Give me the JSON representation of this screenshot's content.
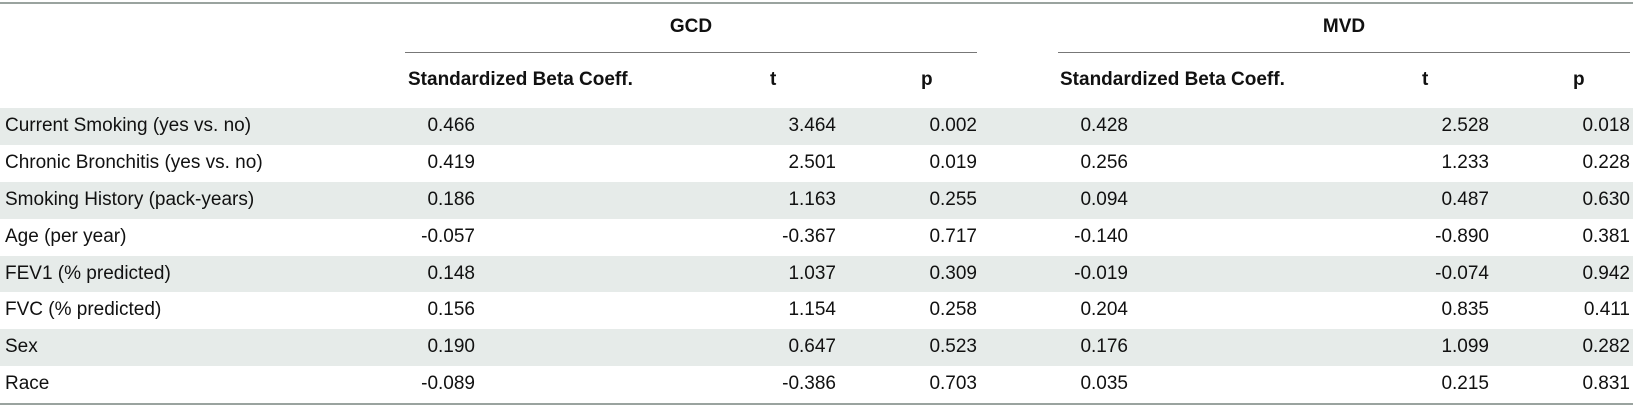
{
  "groups": {
    "gcd": "GCD",
    "mvd": "MVD"
  },
  "columns": {
    "gcd": {
      "beta": "Standardized Beta Coeff.",
      "t": "t",
      "p": "p"
    },
    "mvd": {
      "beta": "Standardized Beta Coeff.",
      "t": "t",
      "p": "p"
    }
  },
  "rows": [
    {
      "label": "Current Smoking (yes vs. no)",
      "gcd_beta": "0.466",
      "gcd_t": "3.464",
      "gcd_p": "0.002",
      "mvd_beta": "0.428",
      "mvd_t": "2.528",
      "mvd_p": "0.018"
    },
    {
      "label": "Chronic Bronchitis (yes vs. no)",
      "gcd_beta": "0.419",
      "gcd_t": "2.501",
      "gcd_p": "0.019",
      "mvd_beta": "0.256",
      "mvd_t": "1.233",
      "mvd_p": "0.228"
    },
    {
      "label": "Smoking History (pack-years)",
      "gcd_beta": "0.186",
      "gcd_t": "1.163",
      "gcd_p": "0.255",
      "mvd_beta": "0.094",
      "mvd_t": "0.487",
      "mvd_p": "0.630"
    },
    {
      "label": "Age (per year)",
      "gcd_beta": "-0.057",
      "gcd_t": "-0.367",
      "gcd_p": "0.717",
      "mvd_beta": "-0.140",
      "mvd_t": "-0.890",
      "mvd_p": "0.381"
    },
    {
      "label": "FEV1 (% predicted)",
      "gcd_beta": "0.148",
      "gcd_t": "1.037",
      "gcd_p": "0.309",
      "mvd_beta": "-0.019",
      "mvd_t": "-0.074",
      "mvd_p": "0.942"
    },
    {
      "label": "FVC (% predicted)",
      "gcd_beta": "0.156",
      "gcd_t": "1.154",
      "gcd_p": "0.258",
      "mvd_beta": "0.204",
      "mvd_t": "0.835",
      "mvd_p": "0.411"
    },
    {
      "label": "Sex",
      "gcd_beta": "0.190",
      "gcd_t": "0.647",
      "gcd_p": "0.523",
      "mvd_beta": "0.176",
      "mvd_t": "1.099",
      "mvd_p": "0.282"
    },
    {
      "label": "Race",
      "gcd_beta": "-0.089",
      "gcd_t": "-0.386",
      "gcd_p": "0.703",
      "mvd_beta": "0.035",
      "mvd_t": "0.215",
      "mvd_p": "0.831"
    }
  ]
}
